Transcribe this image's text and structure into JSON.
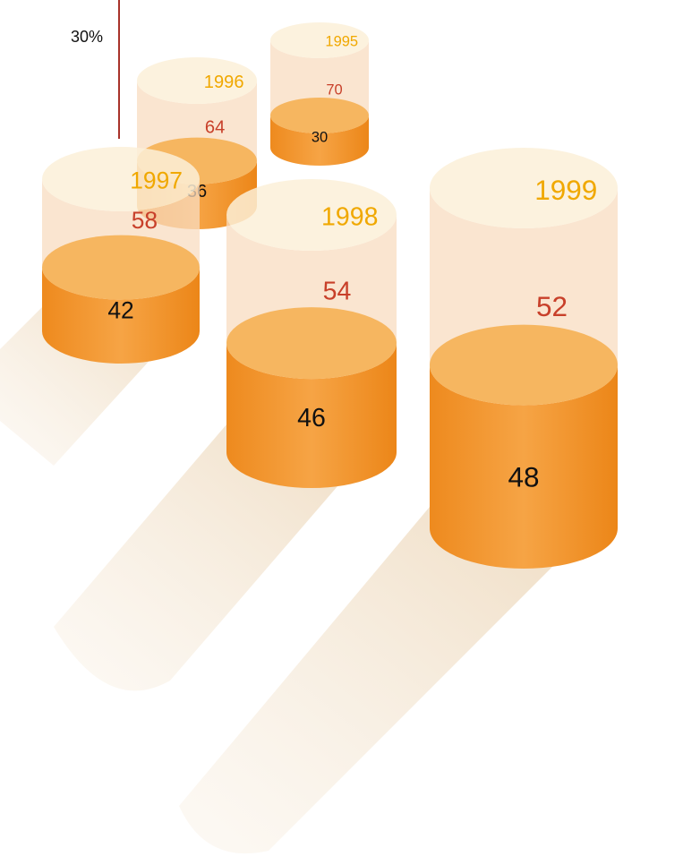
{
  "chart_data": {
    "type": "cylinder",
    "annotation": "30%",
    "categories": [
      "1995",
      "1996",
      "1997",
      "1998",
      "1999"
    ],
    "series": [
      {
        "color": "#f0932a",
        "values": [
          30,
          36,
          42,
          46,
          48
        ]
      },
      {
        "color": "#f8dcc0",
        "values": [
          70,
          64,
          58,
          54,
          52
        ]
      }
    ]
  }
}
